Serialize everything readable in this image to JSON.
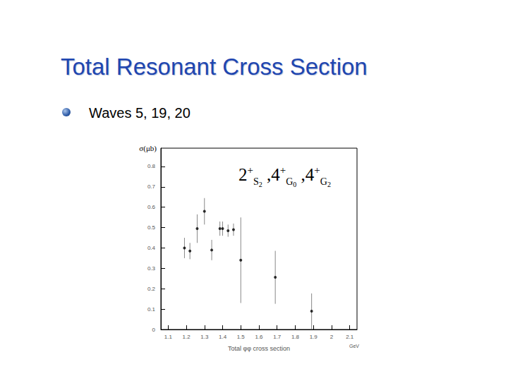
{
  "slide": {
    "title": "Total Resonant Cross Section",
    "bullets": [
      "Waves 5, 19, 20"
    ]
  },
  "chart_data": {
    "type": "scatter",
    "x_label": "Total φφ cross section",
    "y_label": "σ(μb)",
    "annotations": [
      "2+S2 ,4+G0 ,4+G2",
      "GeV"
    ],
    "x": [
      1.19,
      1.22,
      1.26,
      1.3,
      1.34,
      1.385,
      1.4,
      1.43,
      1.46,
      1.5,
      1.69,
      1.89
    ],
    "values": [
      0.4,
      0.385,
      0.495,
      0.58,
      0.39,
      0.495,
      0.495,
      0.485,
      0.49,
      0.34,
      0.256,
      0.09
    ],
    "errors": [
      0.05,
      0.04,
      0.07,
      0.065,
      0.05,
      0.035,
      0.035,
      0.03,
      0.03,
      0.21,
      0.13,
      0.087
    ],
    "color": "#000000",
    "marker": "circle",
    "xlim": [
      1.06,
      2.14
    ],
    "xticks": [
      1.1,
      1.2,
      1.3,
      1.4,
      1.5,
      1.6,
      1.7,
      1.8,
      1.9,
      2,
      2.1
    ],
    "ylim": [
      0,
      0.89
    ],
    "yticks": [
      0,
      0.1,
      0.2,
      0.3,
      0.4,
      0.5,
      0.6,
      0.7,
      0.8
    ],
    "grid": false
  }
}
